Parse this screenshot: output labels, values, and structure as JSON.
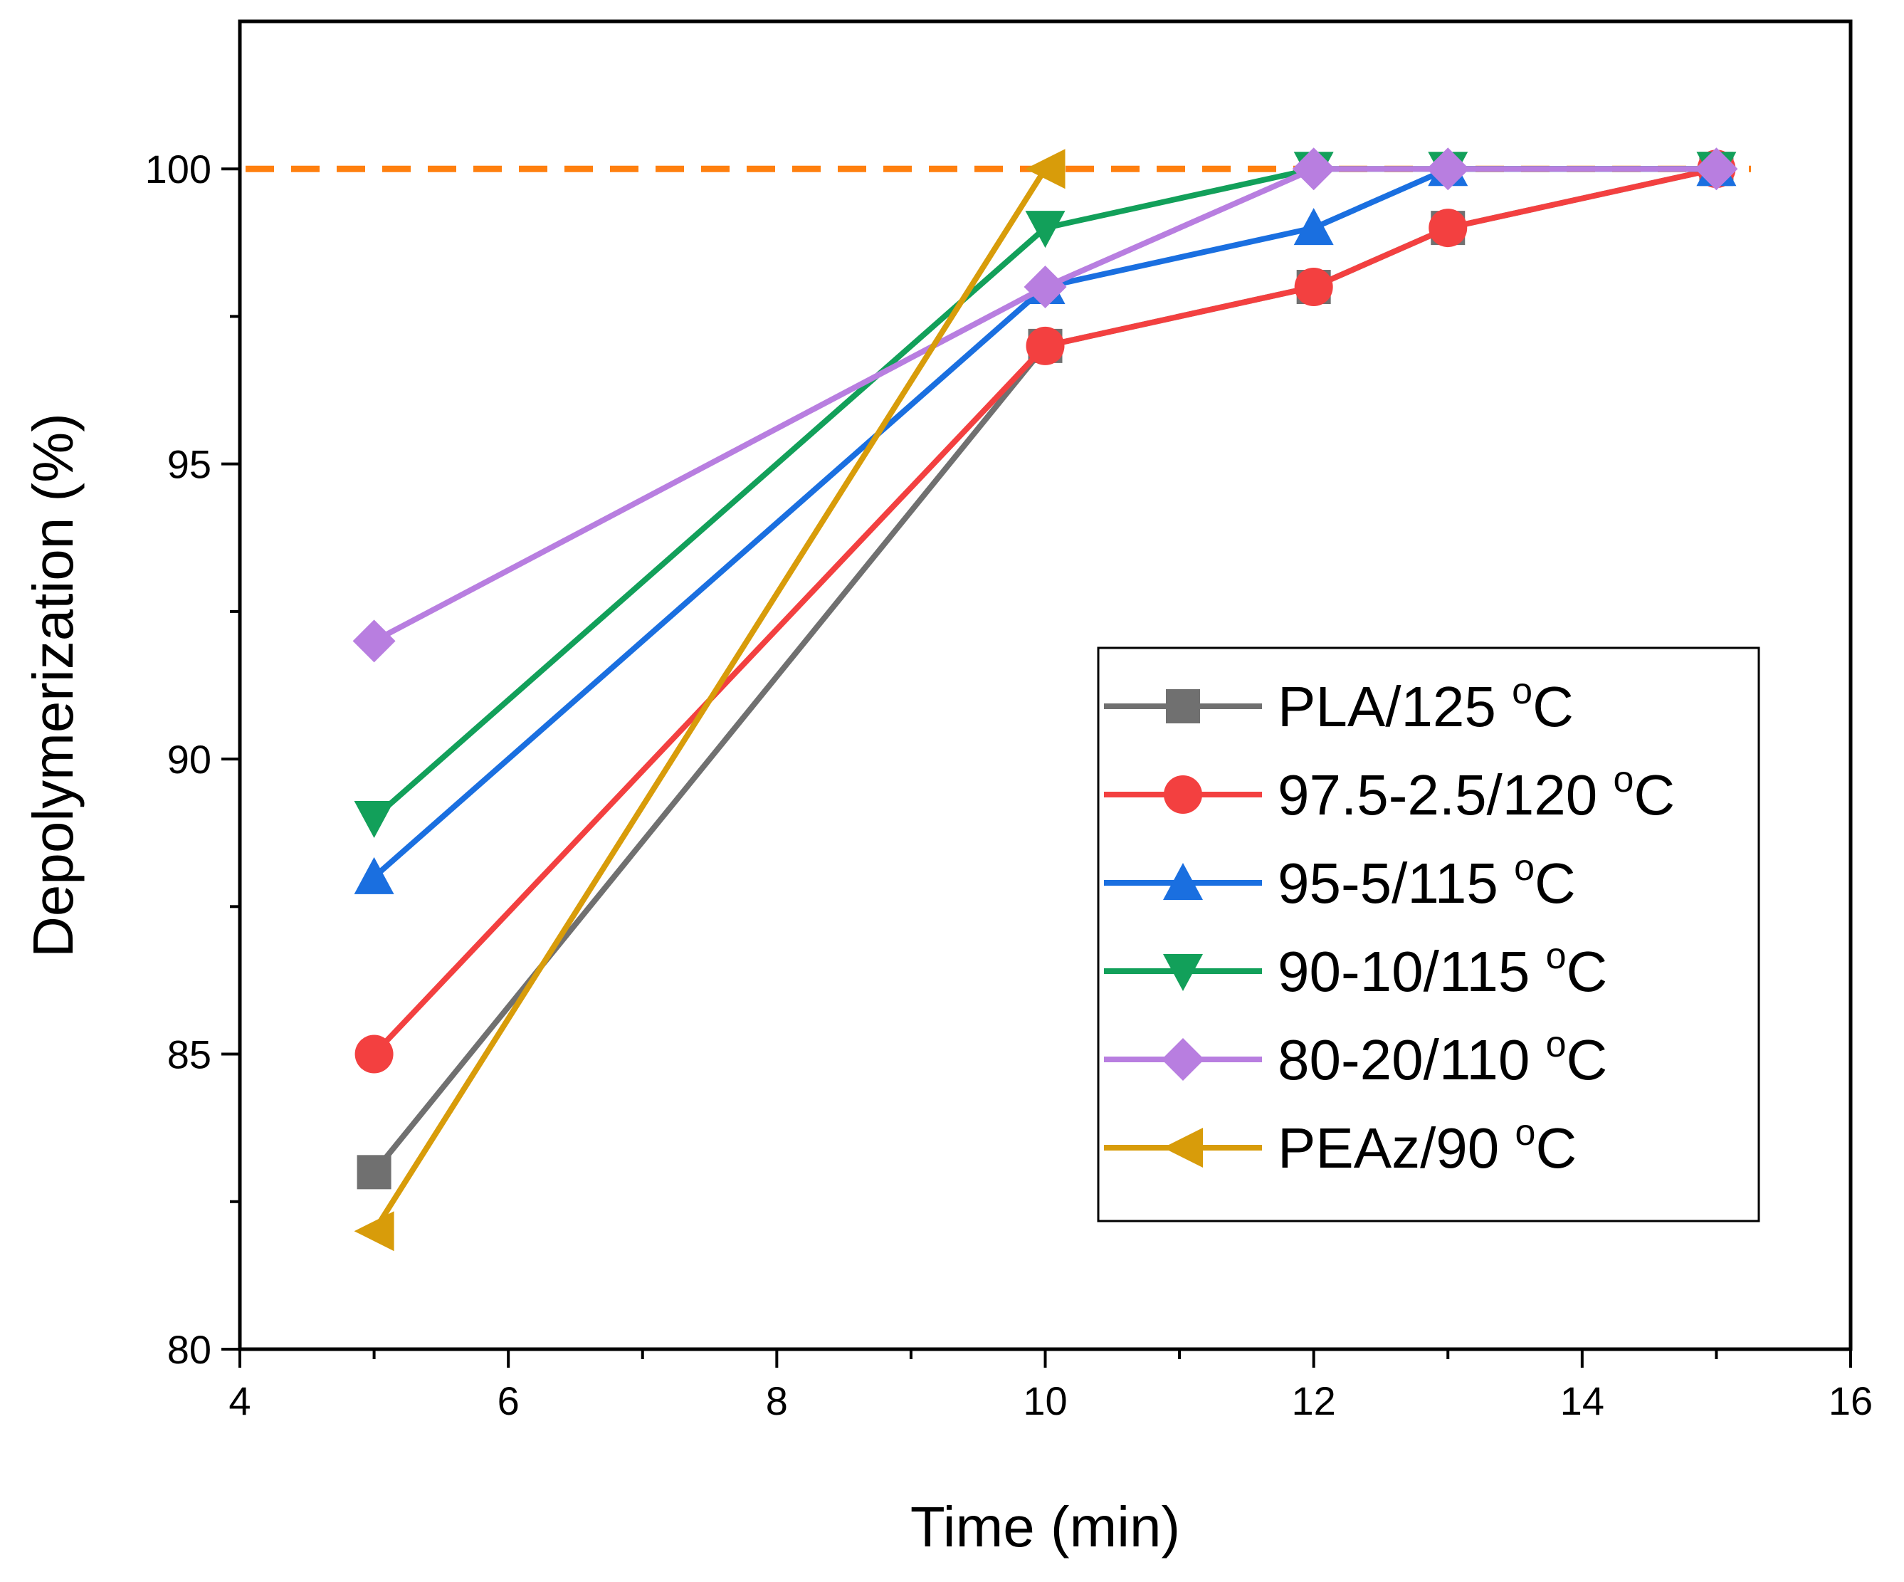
{
  "chart_data": {
    "type": "line",
    "title": "",
    "xlabel": "Time (min)",
    "ylabel": "Depolymerization (%)",
    "xlim": [
      4,
      16
    ],
    "ylim": [
      80,
      102.5
    ],
    "xticks": [
      4,
      6,
      8,
      10,
      12,
      14,
      16
    ],
    "yticks": [
      80,
      85,
      90,
      95,
      100
    ],
    "grid": false,
    "legend_position": "right",
    "reference_line": {
      "y": 100,
      "style": "dashed",
      "color": "#ff7f0e"
    },
    "series": [
      {
        "name": "PLA/125",
        "unit": "oC",
        "color": "#707070",
        "marker": "square",
        "x": [
          5,
          10,
          12,
          13,
          15
        ],
        "y": [
          83,
          97,
          98,
          99,
          100
        ]
      },
      {
        "name": "97.5-2.5/120",
        "unit": "oC",
        "color": "#f34040",
        "marker": "circle",
        "x": [
          5,
          10,
          12,
          13,
          15
        ],
        "y": [
          85,
          97,
          98,
          99,
          100
        ]
      },
      {
        "name": "95-5/115",
        "unit": "oC",
        "color": "#1a6fe0",
        "marker": "triangle-up",
        "x": [
          5,
          10,
          12,
          13,
          15
        ],
        "y": [
          88,
          98,
          99,
          100,
          100
        ]
      },
      {
        "name": "90-10/115",
        "unit": "oC",
        "color": "#12a05a",
        "marker": "triangle-down",
        "x": [
          5,
          10,
          12,
          13,
          15
        ],
        "y": [
          89,
          99,
          100,
          100,
          100
        ]
      },
      {
        "name": "80-20/110",
        "unit": "oC",
        "color": "#b87ee0",
        "marker": "diamond",
        "x": [
          5,
          10,
          12,
          13,
          15
        ],
        "y": [
          92,
          98,
          100,
          100,
          100
        ]
      },
      {
        "name": "PEAz/90",
        "unit": "oC",
        "color": "#d89c0a",
        "marker": "triangle-left",
        "x": [
          5,
          10
        ],
        "y": [
          82,
          100
        ]
      }
    ]
  }
}
